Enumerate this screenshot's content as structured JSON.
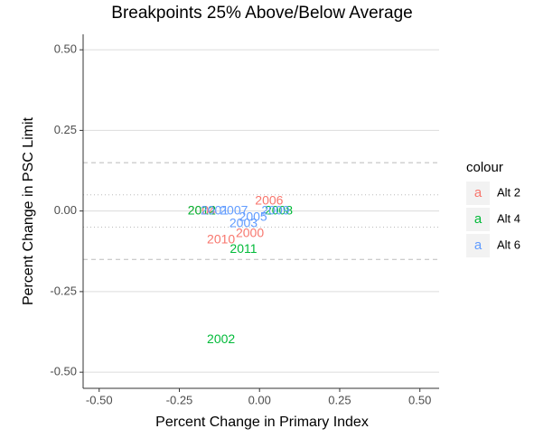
{
  "chart_data": {
    "type": "text-scatter",
    "title": "Breakpoints 25% Above/Below Average",
    "x_label": "Percent Change in Primary Index",
    "y_label": "Percent Change in PSC Limit",
    "legend_title": "colour",
    "legend_key_glyph": "a",
    "xlim": [
      -0.55,
      0.56
    ],
    "ylim": [
      -0.55,
      0.548
    ],
    "xticks": [
      {
        "value": -0.5,
        "label": "-0.50"
      },
      {
        "value": -0.25,
        "label": "-0.25"
      },
      {
        "value": 0,
        "label": "0.00"
      },
      {
        "value": 0.25,
        "label": "0.25"
      },
      {
        "value": 0.5,
        "label": "0.50"
      }
    ],
    "yticks": [
      {
        "value": -0.5,
        "label": "-0.50"
      },
      {
        "value": -0.25,
        "label": "-0.25"
      },
      {
        "value": 0,
        "label": "0.00"
      },
      {
        "value": 0.25,
        "label": "0.25"
      },
      {
        "value": 0.5,
        "label": "0.50"
      }
    ],
    "grid": true,
    "reference_lines": [
      {
        "value": 0.15,
        "style": "dashed"
      },
      {
        "value": -0.15,
        "style": "dashed"
      },
      {
        "value": 0.05,
        "style": "dotted"
      },
      {
        "value": -0.05,
        "style": "dotted"
      }
    ],
    "series": [
      {
        "name": "Alt 2",
        "color": "#F8766D",
        "labels": [
          "2000",
          "2010",
          "2004",
          "2006"
        ],
        "x": [
          -0.03,
          -0.12,
          -0.18,
          0.03
        ],
        "values": [
          -0.07,
          -0.09,
          0.0,
          0.03
        ]
      },
      {
        "name": "Alt 4",
        "color": "#00BA38",
        "labels": [
          "2002",
          "2011",
          "2008",
          "2012"
        ],
        "x": [
          -0.12,
          -0.05,
          0.06,
          -0.18
        ],
        "values": [
          -0.4,
          -0.12,
          0.0,
          0.0
        ]
      },
      {
        "name": "Alt 6",
        "color": "#619CFF",
        "labels": [
          "2001",
          "2003",
          "2005",
          "2009",
          "2007"
        ],
        "x": [
          -0.14,
          -0.05,
          -0.02,
          0.05,
          -0.08
        ],
        "values": [
          0.0,
          -0.04,
          -0.02,
          0.0,
          0.0
        ]
      }
    ]
  }
}
